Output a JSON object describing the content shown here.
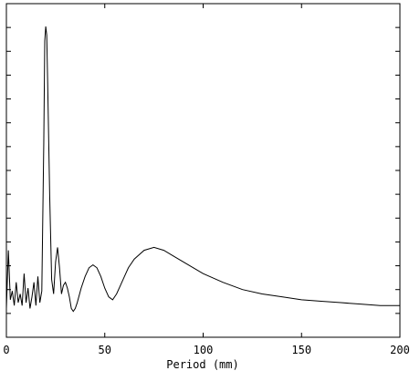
{
  "chart_data": {
    "type": "line",
    "title": "",
    "xlabel": "Period (mm)",
    "ylabel": "",
    "xlim": [
      0,
      200
    ],
    "x_ticks": [
      0,
      50,
      100,
      150,
      200
    ],
    "x_tick_labels": [
      "0",
      "50",
      "100",
      "150",
      "200"
    ],
    "y_ticks_unlabeled": 13,
    "grid": false,
    "legend": "none",
    "series": [
      {
        "values_relative_to_peak": true,
        "x": [
          0,
          1,
          2,
          3,
          4,
          5,
          6,
          7,
          8,
          9,
          10,
          11,
          12,
          13,
          14,
          15,
          16,
          17,
          18,
          19,
          19.5,
          20,
          20.5,
          21,
          22,
          23,
          24,
          25,
          26,
          27,
          28,
          29,
          30,
          31,
          32,
          33,
          34,
          35,
          36,
          38,
          40,
          42,
          44,
          46,
          48,
          50,
          52,
          54,
          56,
          58,
          60,
          62,
          65,
          70,
          75,
          80,
          85,
          90,
          95,
          100,
          110,
          120,
          130,
          140,
          150,
          160,
          170,
          180,
          190,
          200
        ],
        "y": [
          0.03,
          0.23,
          0.06,
          0.09,
          0.04,
          0.12,
          0.05,
          0.08,
          0.04,
          0.15,
          0.05,
          0.1,
          0.03,
          0.07,
          0.12,
          0.04,
          0.14,
          0.05,
          0.09,
          0.6,
          0.95,
          1.0,
          0.97,
          0.8,
          0.42,
          0.13,
          0.08,
          0.19,
          0.24,
          0.17,
          0.08,
          0.11,
          0.12,
          0.1,
          0.07,
          0.03,
          0.02,
          0.03,
          0.05,
          0.1,
          0.14,
          0.17,
          0.18,
          0.17,
          0.14,
          0.1,
          0.07,
          0.06,
          0.08,
          0.11,
          0.14,
          0.17,
          0.2,
          0.23,
          0.24,
          0.23,
          0.21,
          0.19,
          0.17,
          0.15,
          0.12,
          0.095,
          0.08,
          0.07,
          0.06,
          0.055,
          0.05,
          0.045,
          0.04,
          0.04
        ]
      }
    ]
  }
}
